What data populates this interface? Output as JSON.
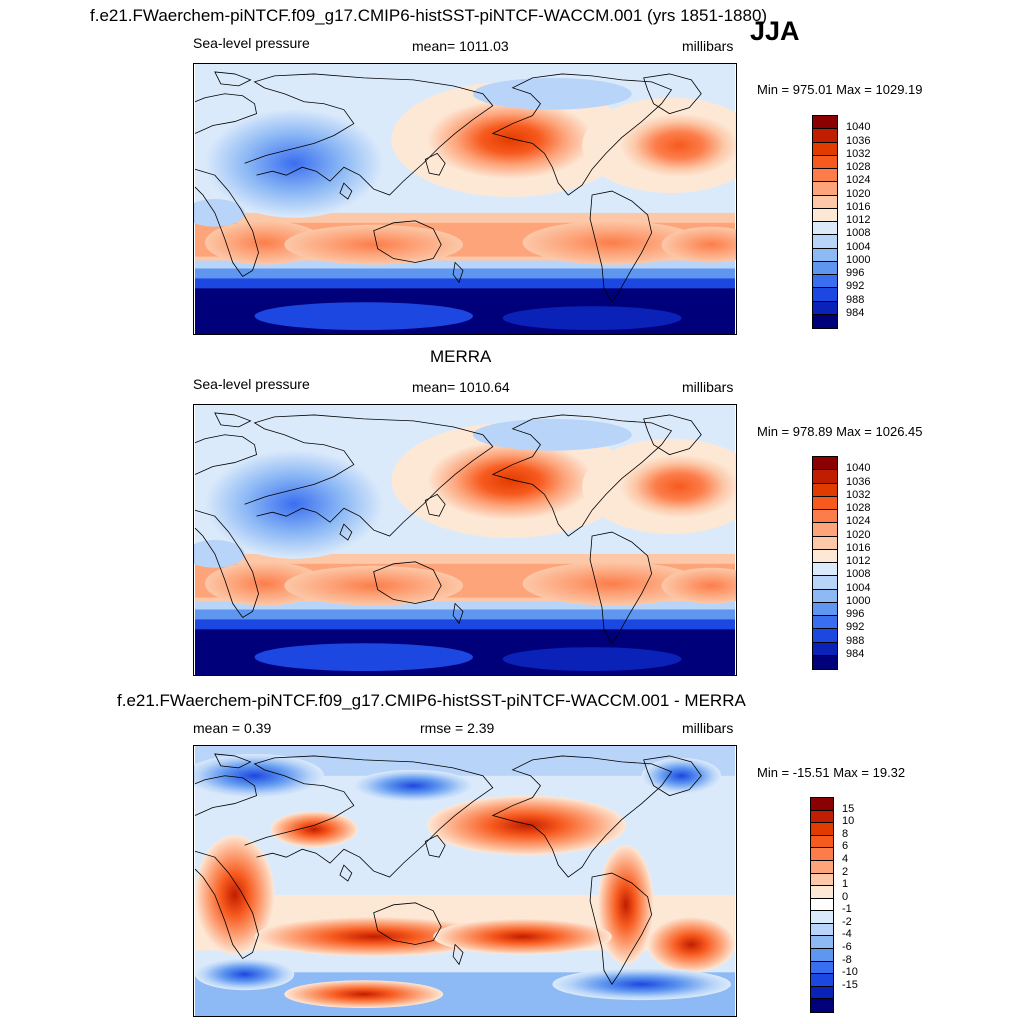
{
  "figure": {
    "title": "f.e21.FWaerchem-piNTCF.f09_g17.CMIP6-histSST-piNTCF-WACCM.001 (yrs 1851-1880)",
    "season": "JJA"
  },
  "panels": [
    {
      "title": "",
      "left_label": "Sea-level pressure",
      "center_label": "mean= 1011.03",
      "right_label": "millibars",
      "minmax": "Min = 975.01 Max = 1029.19",
      "colorbar": {
        "labels": [
          "1040",
          "1036",
          "1032",
          "1028",
          "1024",
          "1020",
          "1016",
          "1012",
          "1008",
          "1004",
          "1000",
          "996",
          "992",
          "988",
          "984"
        ],
        "colors": [
          "#8b0000",
          "#c11d00",
          "#e23b00",
          "#f75a1e",
          "#fc7d4a",
          "#fda47a",
          "#fcc8a8",
          "#fde8d6",
          "#dbeafb",
          "#b8d4f8",
          "#8db9f5",
          "#5f97f0",
          "#3a6ef0",
          "#1c47e0",
          "#0a22b8",
          "#00007a"
        ]
      }
    },
    {
      "title": "MERRA",
      "left_label": "Sea-level pressure",
      "center_label": "mean= 1010.64",
      "right_label": "millibars",
      "minmax": "Min = 978.89 Max = 1026.45",
      "colorbar": {
        "labels": [
          "1040",
          "1036",
          "1032",
          "1028",
          "1024",
          "1020",
          "1016",
          "1012",
          "1008",
          "1004",
          "1000",
          "996",
          "992",
          "988",
          "984"
        ],
        "colors": [
          "#8b0000",
          "#c11d00",
          "#e23b00",
          "#f75a1e",
          "#fc7d4a",
          "#fda47a",
          "#fcc8a8",
          "#fde8d6",
          "#dbeafb",
          "#b8d4f8",
          "#8db9f5",
          "#5f97f0",
          "#3a6ef0",
          "#1c47e0",
          "#0a22b8",
          "#00007a"
        ]
      }
    },
    {
      "title": "f.e21.FWaerchem-piNTCF.f09_g17.CMIP6-histSST-piNTCF-WACCM.001 - MERRA",
      "left_label": "mean =   0.39",
      "center_label": "rmse =   2.39",
      "right_label": "millibars",
      "minmax": "Min = -15.51 Max =  19.32",
      "colorbar": {
        "labels": [
          "15",
          "10",
          "8",
          "6",
          "4",
          "2",
          "1",
          "0",
          "-1",
          "-2",
          "-4",
          "-6",
          "-8",
          "-10",
          "-15"
        ],
        "colors": [
          "#8b0000",
          "#c11d00",
          "#e23b00",
          "#f75a1e",
          "#fc7d4a",
          "#fda47a",
          "#fcc8a8",
          "#fde8d6",
          "#ffffff",
          "#dbeafb",
          "#b8d4f8",
          "#8db9f5",
          "#5f97f0",
          "#3a6ef0",
          "#1c47e0",
          "#0a22b8",
          "#00007a"
        ]
      }
    }
  ]
}
